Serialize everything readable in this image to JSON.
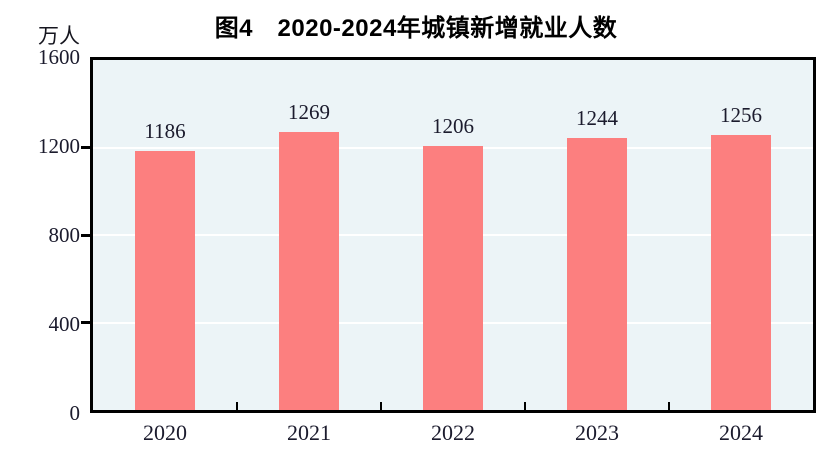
{
  "chart": {
    "unit_label": "万人",
    "colors": {
      "bar": "#fc7f7f",
      "plot_background": "#ecf4f7",
      "axis": "#000000",
      "gridline": "#ffffff",
      "text": "#1b1b2d",
      "title_text": "#000000"
    }
  },
  "chart_data": {
    "type": "bar",
    "title": "图4　2020-2024年城镇新增就业人数",
    "categories": [
      "2020",
      "2021",
      "2022",
      "2023",
      "2024"
    ],
    "values": [
      1186,
      1269,
      1206,
      1244,
      1256
    ],
    "xlabel": "",
    "ylabel": "万人",
    "ylim": [
      0,
      1600
    ],
    "yticks": [
      0,
      400,
      800,
      1200,
      1600
    ],
    "grid": true,
    "legend_position": "none",
    "bar_labels_shown": true
  }
}
